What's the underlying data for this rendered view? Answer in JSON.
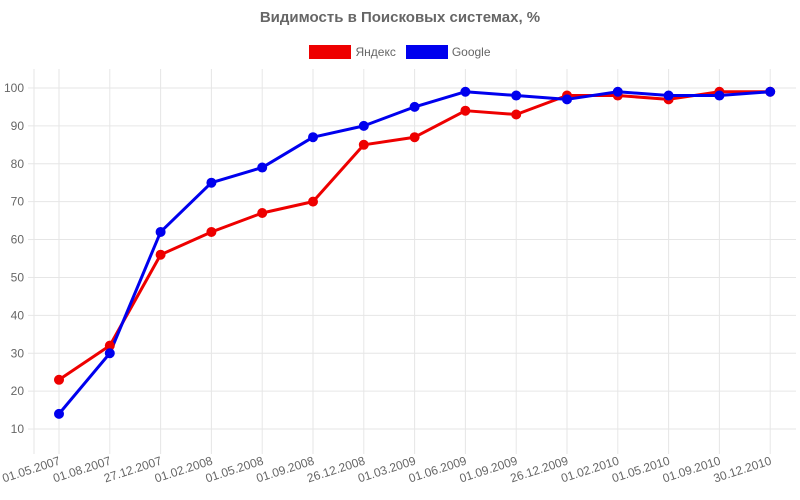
{
  "chart_data": {
    "type": "line",
    "title": "Видимость в Поисковых системах, %",
    "xlabel": "",
    "ylabel": "",
    "categories": [
      "01.05.2007",
      "01.08.2007",
      "27.12.2007",
      "01.02.2008",
      "01.05.2008",
      "01.09.2008",
      "26.12.2008",
      "01.03.2009",
      "01.06.2009",
      "01.09.2009",
      "26.12.2009",
      "01.02.2010",
      "01.05.2010",
      "01.09.2010",
      "30.12.2010"
    ],
    "yticks": [
      10,
      20,
      30,
      40,
      50,
      60,
      70,
      80,
      90,
      100
    ],
    "ylim": [
      5,
      105
    ],
    "grid": true,
    "legend_position": "top",
    "series": [
      {
        "name": "Яндекс",
        "color": "#ee0000",
        "values": [
          23,
          32,
          56,
          62,
          67,
          70,
          85,
          87,
          94,
          93,
          98,
          98,
          97,
          99,
          99
        ]
      },
      {
        "name": "Google",
        "color": "#0000ee",
        "values": [
          14,
          30,
          62,
          75,
          79,
          87,
          90,
          95,
          99,
          98,
          97,
          99,
          98,
          98,
          99
        ]
      }
    ]
  }
}
